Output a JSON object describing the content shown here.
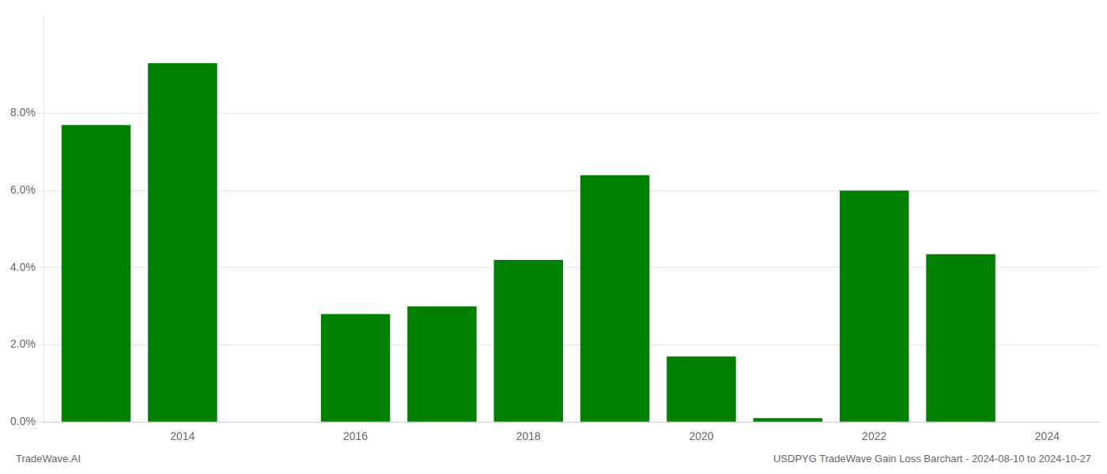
{
  "chart_data": {
    "type": "bar",
    "x": [
      2013,
      2014,
      2016,
      2017,
      2018,
      2019,
      2020,
      2021,
      2022,
      2023
    ],
    "values": [
      0.077,
      0.093,
      0.028,
      0.03,
      0.042,
      0.064,
      0.017,
      0.001,
      0.06,
      0.0435
    ],
    "color": "#008000",
    "xlim": [
      2012.4,
      2024.6
    ],
    "xticks": [
      2014,
      2016,
      2018,
      2020,
      2022,
      2024
    ],
    "ylim": [
      0,
      0.105
    ],
    "yticks": [
      {
        "value": 0.0,
        "label": "0.0%"
      },
      {
        "value": 0.02,
        "label": "2.0%"
      },
      {
        "value": 0.04,
        "label": "4.0%"
      },
      {
        "value": 0.06,
        "label": "6.0%"
      },
      {
        "value": 0.08,
        "label": "8.0%"
      }
    ],
    "grid": "y",
    "annotations": [
      "TradeWave.AI",
      "USDPYG TradeWave Gain Loss Barchart - 2024-08-10 to 2024-10-27"
    ]
  }
}
